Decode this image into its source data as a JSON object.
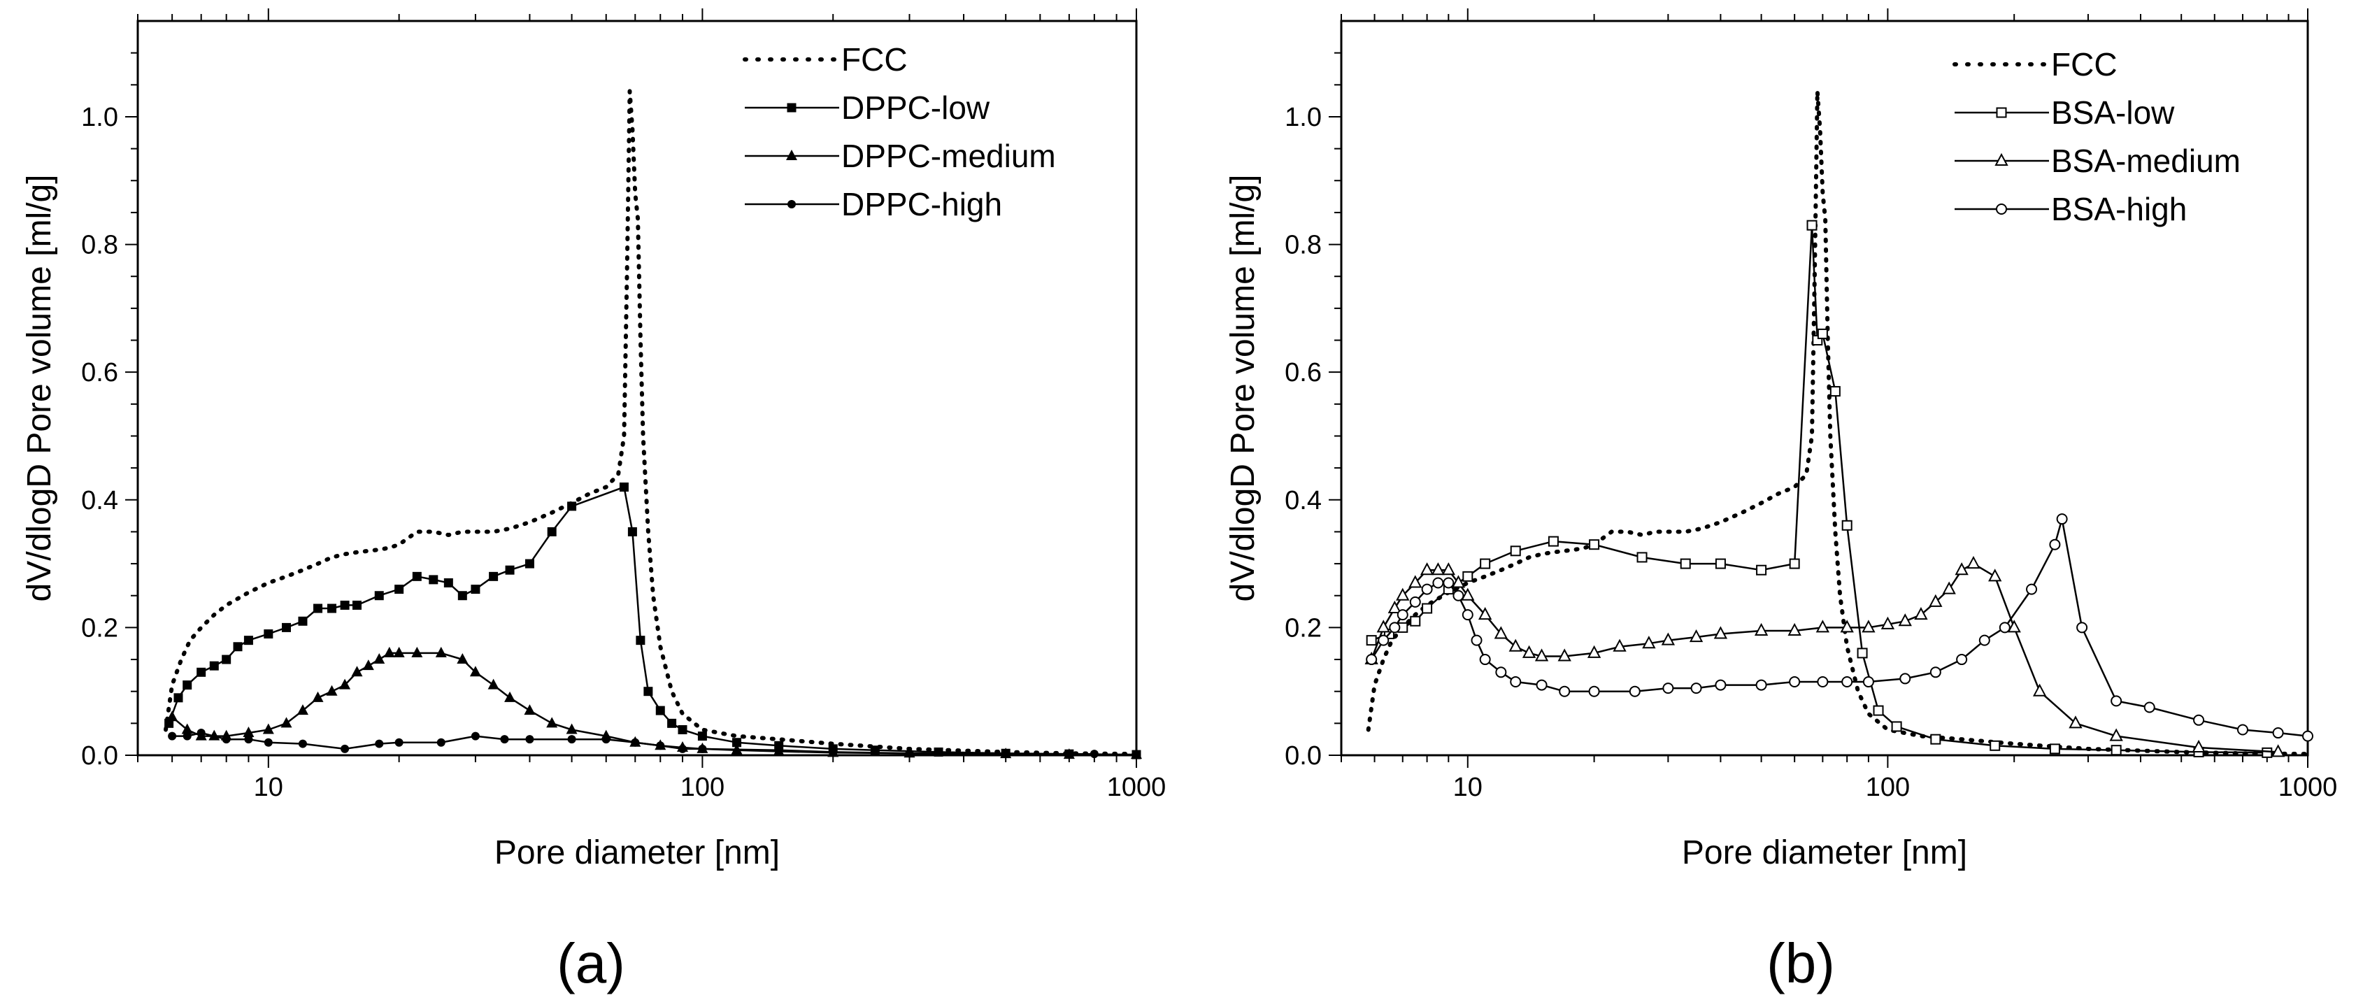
{
  "chart_data": [
    {
      "type": "line",
      "panel_label": "(a)",
      "xlabel": "Pore diameter [nm]",
      "ylabel": "dV/dlogD Pore volume [ml/g]",
      "xscale": "log",
      "xlim": [
        5,
        1000
      ],
      "ylim": [
        0,
        1.15
      ],
      "xticks": [
        10,
        100,
        1000
      ],
      "xtick_labels": [
        "10",
        "100",
        "1000"
      ],
      "yticks": [
        0.0,
        0.2,
        0.4,
        0.6,
        0.8,
        1.0
      ],
      "ytick_labels": [
        "0.0",
        "0.2",
        "0.4",
        "0.6",
        "0.8",
        "1.0"
      ],
      "legend_position": "top-right",
      "series": [
        {
          "name": "FCC",
          "style": "dotted",
          "marker": "none",
          "x": [
            5.8,
            6.0,
            6.3,
            6.6,
            7,
            7.5,
            8,
            9,
            10,
            11,
            12,
            13,
            14,
            15,
            16,
            17,
            18,
            19,
            20,
            22,
            24,
            26,
            28,
            30,
            33,
            36,
            40,
            45,
            50,
            55,
            60,
            64,
            66,
            67,
            68,
            69,
            70,
            71,
            72,
            73,
            75,
            77,
            80,
            85,
            90,
            100,
            120,
            150,
            200,
            300,
            500,
            700,
            1000
          ],
          "y": [
            0.04,
            0.11,
            0.15,
            0.18,
            0.2,
            0.22,
            0.235,
            0.255,
            0.27,
            0.28,
            0.29,
            0.3,
            0.31,
            0.315,
            0.318,
            0.32,
            0.322,
            0.325,
            0.33,
            0.35,
            0.35,
            0.345,
            0.35,
            0.35,
            0.35,
            0.355,
            0.365,
            0.38,
            0.395,
            0.41,
            0.42,
            0.44,
            0.5,
            0.75,
            1.04,
            0.98,
            0.88,
            0.84,
            0.65,
            0.5,
            0.35,
            0.25,
            0.17,
            0.1,
            0.065,
            0.04,
            0.03,
            0.025,
            0.018,
            0.01,
            0.005,
            0.003,
            0.002
          ]
        },
        {
          "name": "DPPC-low",
          "style": "solid",
          "marker": "filled-square",
          "x": [
            5.9,
            6.2,
            6.5,
            7,
            7.5,
            8,
            8.5,
            9,
            10,
            11,
            12,
            13,
            14,
            15,
            16,
            18,
            20,
            22,
            24,
            26,
            28,
            30,
            33,
            36,
            40,
            45,
            50,
            66,
            69,
            72,
            75,
            80,
            85,
            90,
            100,
            120,
            150,
            200,
            250,
            350,
            500,
            700,
            1000
          ],
          "y": [
            0.05,
            0.09,
            0.11,
            0.13,
            0.14,
            0.15,
            0.17,
            0.18,
            0.19,
            0.2,
            0.21,
            0.23,
            0.23,
            0.235,
            0.235,
            0.25,
            0.26,
            0.28,
            0.275,
            0.27,
            0.25,
            0.26,
            0.28,
            0.29,
            0.3,
            0.35,
            0.39,
            0.42,
            0.35,
            0.18,
            0.1,
            0.07,
            0.05,
            0.04,
            0.03,
            0.02,
            0.015,
            0.01,
            0.008,
            0.005,
            0.003,
            0.002,
            0.001
          ]
        },
        {
          "name": "DPPC-medium",
          "style": "solid",
          "marker": "filled-triangle",
          "x": [
            6,
            6.5,
            7,
            7.5,
            8,
            9,
            10,
            11,
            12,
            13,
            14,
            15,
            16,
            17,
            18,
            19,
            20,
            22,
            25,
            28,
            30,
            33,
            36,
            40,
            45,
            50,
            60,
            70,
            80,
            90,
            100,
            120,
            150,
            200,
            300,
            500,
            700,
            1000
          ],
          "y": [
            0.06,
            0.04,
            0.03,
            0.03,
            0.03,
            0.035,
            0.04,
            0.05,
            0.07,
            0.09,
            0.1,
            0.11,
            0.13,
            0.14,
            0.15,
            0.16,
            0.16,
            0.16,
            0.16,
            0.15,
            0.13,
            0.11,
            0.09,
            0.07,
            0.05,
            0.04,
            0.03,
            0.02,
            0.015,
            0.012,
            0.01,
            0.008,
            0.006,
            0.004,
            0.003,
            0.002,
            0.001,
            0.001
          ]
        },
        {
          "name": "DPPC-high",
          "style": "solid",
          "marker": "filled-circle",
          "x": [
            6,
            6.5,
            7,
            8,
            9,
            10,
            12,
            15,
            18,
            20,
            25,
            30,
            35,
            40,
            50,
            60,
            70,
            80,
            90,
            100,
            150,
            200,
            300,
            500,
            800
          ],
          "y": [
            0.03,
            0.03,
            0.035,
            0.025,
            0.025,
            0.02,
            0.018,
            0.01,
            0.018,
            0.02,
            0.02,
            0.03,
            0.025,
            0.025,
            0.025,
            0.025,
            0.02,
            0.015,
            0.01,
            0.01,
            0.008,
            0.005,
            0.003,
            0.002,
            0.002
          ]
        }
      ]
    },
    {
      "type": "line",
      "panel_label": "(b)",
      "xlabel": "Pore diameter [nm]",
      "ylabel": "dV/dlogD Pore volume [ml/g]",
      "xscale": "log",
      "xlim": [
        5,
        1000
      ],
      "ylim": [
        0,
        1.15
      ],
      "xticks": [
        10,
        100,
        1000
      ],
      "xtick_labels": [
        "10",
        "100",
        "1000"
      ],
      "yticks": [
        0.0,
        0.2,
        0.4,
        0.6,
        0.8,
        1.0
      ],
      "ytick_labels": [
        "0.0",
        "0.2",
        "0.4",
        "0.6",
        "0.8",
        "1.0"
      ],
      "legend_position": "top-right",
      "series": [
        {
          "name": "FCC",
          "style": "dotted",
          "marker": "none",
          "x": [
            5.8,
            6.0,
            6.3,
            6.6,
            7,
            7.5,
            8,
            9,
            10,
            11,
            12,
            13,
            14,
            15,
            16,
            17,
            18,
            19,
            20,
            22,
            24,
            26,
            28,
            30,
            33,
            36,
            40,
            45,
            50,
            55,
            60,
            64,
            66,
            67,
            68,
            69,
            70,
            71,
            72,
            73,
            75,
            77,
            80,
            85,
            90,
            100,
            120,
            150,
            200,
            300,
            500,
            700,
            1000
          ],
          "y": [
            0.04,
            0.11,
            0.15,
            0.18,
            0.2,
            0.22,
            0.235,
            0.255,
            0.27,
            0.28,
            0.29,
            0.3,
            0.31,
            0.315,
            0.318,
            0.32,
            0.322,
            0.325,
            0.33,
            0.35,
            0.35,
            0.345,
            0.35,
            0.35,
            0.35,
            0.355,
            0.365,
            0.38,
            0.395,
            0.41,
            0.42,
            0.44,
            0.5,
            0.75,
            1.04,
            0.98,
            0.88,
            0.84,
            0.65,
            0.5,
            0.35,
            0.25,
            0.17,
            0.1,
            0.065,
            0.04,
            0.03,
            0.025,
            0.018,
            0.01,
            0.005,
            0.003,
            0.002
          ]
        },
        {
          "name": "BSA-low",
          "style": "solid",
          "marker": "open-square",
          "x": [
            5.9,
            6.5,
            7,
            7.5,
            8,
            9,
            10,
            11,
            13,
            16,
            20,
            26,
            33,
            40,
            50,
            60,
            66,
            68,
            70,
            75,
            80,
            87,
            95,
            105,
            130,
            180,
            250,
            350,
            550,
            800
          ],
          "y": [
            0.18,
            0.19,
            0.2,
            0.21,
            0.23,
            0.26,
            0.28,
            0.3,
            0.32,
            0.335,
            0.33,
            0.31,
            0.3,
            0.3,
            0.29,
            0.3,
            0.83,
            0.65,
            0.66,
            0.57,
            0.36,
            0.16,
            0.07,
            0.045,
            0.025,
            0.015,
            0.01,
            0.008,
            0.005,
            0.004
          ]
        },
        {
          "name": "BSA-medium",
          "style": "solid",
          "marker": "open-triangle",
          "x": [
            5.9,
            6.3,
            6.7,
            7,
            7.5,
            8,
            8.5,
            9,
            9.5,
            10,
            11,
            12,
            13,
            14,
            15,
            17,
            20,
            23,
            27,
            30,
            35,
            40,
            50,
            60,
            70,
            80,
            90,
            100,
            110,
            120,
            130,
            140,
            150,
            160,
            180,
            200,
            230,
            280,
            350,
            550,
            850
          ],
          "y": [
            0.15,
            0.2,
            0.23,
            0.25,
            0.27,
            0.29,
            0.29,
            0.29,
            0.27,
            0.25,
            0.22,
            0.19,
            0.17,
            0.16,
            0.155,
            0.155,
            0.16,
            0.17,
            0.175,
            0.18,
            0.185,
            0.19,
            0.195,
            0.195,
            0.2,
            0.2,
            0.2,
            0.205,
            0.21,
            0.22,
            0.24,
            0.26,
            0.29,
            0.3,
            0.28,
            0.2,
            0.1,
            0.05,
            0.03,
            0.012,
            0.005
          ]
        },
        {
          "name": "BSA-high",
          "style": "solid",
          "marker": "open-circle",
          "x": [
            5.9,
            6.3,
            6.7,
            7,
            7.5,
            8,
            8.5,
            9,
            9.5,
            10,
            10.5,
            11,
            12,
            13,
            15,
            17,
            20,
            25,
            30,
            35,
            40,
            50,
            60,
            70,
            80,
            90,
            110,
            130,
            150,
            170,
            190,
            220,
            250,
            260,
            290,
            350,
            420,
            550,
            700,
            850,
            1000
          ],
          "y": [
            0.15,
            0.18,
            0.2,
            0.22,
            0.24,
            0.26,
            0.27,
            0.27,
            0.25,
            0.22,
            0.18,
            0.15,
            0.13,
            0.115,
            0.11,
            0.1,
            0.1,
            0.1,
            0.105,
            0.105,
            0.11,
            0.11,
            0.115,
            0.115,
            0.115,
            0.115,
            0.12,
            0.13,
            0.15,
            0.18,
            0.2,
            0.26,
            0.33,
            0.37,
            0.2,
            0.085,
            0.075,
            0.055,
            0.04,
            0.035,
            0.03
          ]
        }
      ]
    }
  ]
}
